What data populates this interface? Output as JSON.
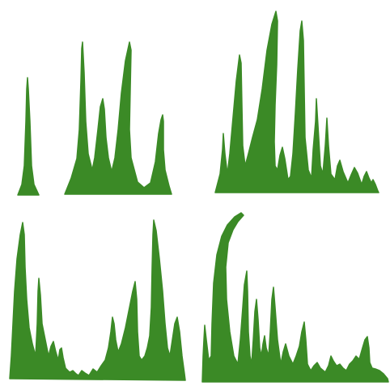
{
  "artwork": {
    "fill_color": "#3b8a26",
    "background_color": "#ffffff",
    "clusters": [
      {
        "name": "grass-cluster-1"
      },
      {
        "name": "grass-cluster-2"
      },
      {
        "name": "grass-cluster-3"
      },
      {
        "name": "grass-cluster-4"
      }
    ]
  }
}
